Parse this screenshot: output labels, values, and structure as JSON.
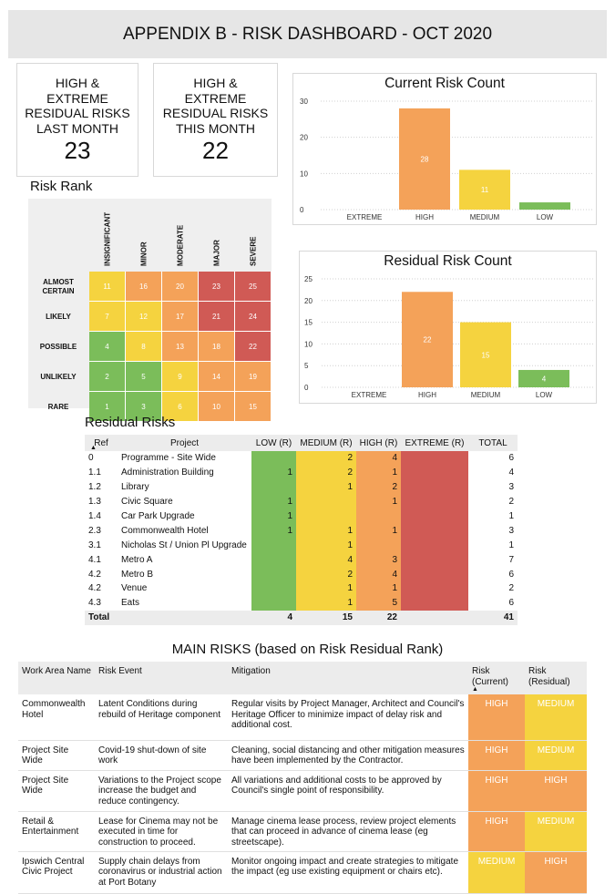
{
  "title": "APPENDIX B - RISK DASHBOARD - OCT 2020",
  "kpis": [
    {
      "label_lines": [
        "HIGH &",
        "EXTREME",
        "RESIDUAL RISKS",
        "LAST MONTH"
      ],
      "value": "23"
    },
    {
      "label_lines": [
        "HIGH &",
        "EXTREME",
        "RESIDUAL RISKS",
        "THIS MONTH"
      ],
      "value": "22"
    }
  ],
  "chart_data": [
    {
      "type": "bar",
      "title": "Current Risk Count",
      "categories": [
        "EXTREME",
        "HIGH",
        "MEDIUM",
        "LOW"
      ],
      "values": [
        0,
        28,
        11,
        2
      ],
      "labels": [
        "",
        "28",
        "11",
        ""
      ],
      "yticks": [
        0,
        10,
        20,
        30
      ],
      "ylim": [
        0,
        30
      ],
      "colors": [
        "#d05a55",
        "#f4a259",
        "#f5d33f",
        "#7bbd5a"
      ]
    },
    {
      "type": "bar",
      "title": "Residual Risk Count",
      "categories": [
        "EXTREME",
        "HIGH",
        "MEDIUM",
        "LOW"
      ],
      "values": [
        0,
        22,
        15,
        4
      ],
      "labels": [
        "",
        "22",
        "15",
        "4"
      ],
      "yticks": [
        0,
        5,
        10,
        15,
        20,
        25
      ],
      "ylim": [
        0,
        25
      ],
      "colors": [
        "#d05a55",
        "#f4a259",
        "#f5d33f",
        "#7bbd5a"
      ]
    }
  ],
  "risk_rank": {
    "title": "Risk Rank",
    "columns": [
      "INSIGNIFICANT",
      "MINOR",
      "MODERATE",
      "MAJOR",
      "SEVERE"
    ],
    "rows": [
      {
        "label_lines": [
          "ALMOST",
          "CERTAIN"
        ],
        "values": [
          "11",
          "16",
          "20",
          "23",
          "25"
        ],
        "colors": [
          "#f5d33f",
          "#f4a259",
          "#f4a259",
          "#d05a55",
          "#d05a55"
        ]
      },
      {
        "label_lines": [
          "LIKELY"
        ],
        "values": [
          "7",
          "12",
          "17",
          "21",
          "24"
        ],
        "colors": [
          "#f5d33f",
          "#f5d33f",
          "#f4a259",
          "#d05a55",
          "#d05a55"
        ]
      },
      {
        "label_lines": [
          "POSSIBLE"
        ],
        "values": [
          "4",
          "8",
          "13",
          "18",
          "22"
        ],
        "colors": [
          "#7bbd5a",
          "#f5d33f",
          "#f4a259",
          "#f4a259",
          "#d05a55"
        ]
      },
      {
        "label_lines": [
          "UNLIKELY"
        ],
        "values": [
          "2",
          "5",
          "9",
          "14",
          "19"
        ],
        "colors": [
          "#7bbd5a",
          "#7bbd5a",
          "#f5d33f",
          "#f4a259",
          "#f4a259"
        ]
      },
      {
        "label_lines": [
          "RARE"
        ],
        "values": [
          "1",
          "3",
          "6",
          "10",
          "15"
        ],
        "colors": [
          "#7bbd5a",
          "#7bbd5a",
          "#f5d33f",
          "#f4a259",
          "#f4a259"
        ]
      }
    ]
  },
  "residual_risks": {
    "title": "Residual Risks",
    "headers": [
      "Ref",
      "Project",
      "LOW (R)",
      "MEDIUM (R)",
      "HIGH (R)",
      "EXTREME (R)",
      "TOTAL"
    ],
    "sort_icon": "sort-up-icon",
    "rows": [
      [
        "0",
        "Programme - Site Wide",
        "",
        "2",
        "4",
        "",
        "6"
      ],
      [
        "1.1",
        "Administration Building",
        "1",
        "2",
        "1",
        "",
        "4"
      ],
      [
        "1.2",
        "Library",
        "",
        "1",
        "2",
        "",
        "3"
      ],
      [
        "1.3",
        "Civic Square",
        "1",
        "",
        "1",
        "",
        "2"
      ],
      [
        "1.4",
        "Car Park Upgrade",
        "1",
        "",
        "",
        "",
        "1"
      ],
      [
        "2.3",
        "Commonwealth Hotel",
        "1",
        "1",
        "1",
        "",
        "3"
      ],
      [
        "3.1",
        "Nicholas St / Union Pl Upgrade",
        "",
        "1",
        "",
        "",
        "1"
      ],
      [
        "4.1",
        "Metro A",
        "",
        "4",
        "3",
        "",
        "7"
      ],
      [
        "4.2",
        "Metro B",
        "",
        "2",
        "4",
        "",
        "6"
      ],
      [
        "4.2",
        "Venue",
        "",
        "1",
        "1",
        "",
        "2"
      ],
      [
        "4.3",
        "Eats",
        "",
        "1",
        "5",
        "",
        "6"
      ]
    ],
    "total": [
      "Total",
      "",
      "4",
      "15",
      "22",
      "",
      "41"
    ]
  },
  "main_risks": {
    "title": "MAIN RISKS (based on Risk Residual Rank)",
    "headers": [
      "Work Area Name",
      "Risk Event",
      "Mitigation",
      "Risk (Current)",
      "Risk (Residual)"
    ],
    "rows": [
      {
        "area": "Commonwealth Hotel",
        "event": "Latent Conditions during rebuild of Heritage component",
        "mitigation": "Regular visits by Project Manager, Architect and Council's Heritage Officer to minimize impact of delay risk and additional cost.",
        "current": "HIGH",
        "residual": "MEDIUM"
      },
      {
        "area": "Project Site Wide",
        "event": "Covid-19 shut-down of site work",
        "mitigation": "Cleaning, social distancing and other mitigation measures have been implemented by the Contractor.",
        "current": "HIGH",
        "residual": "MEDIUM"
      },
      {
        "area": "Project Site Wide",
        "event": "Variations to the Project scope increase the budget and reduce contingency.",
        "mitigation": "All variations and additional costs to be approved by Council's single point of responsibility.",
        "current": "HIGH",
        "residual": "HIGH"
      },
      {
        "area": "Retail & Entertainment",
        "event": "Lease for Cinema may not be executed in time for construction to proceed.",
        "mitigation": "Manage cinema lease process, review project elements that can proceed in advance of cinema lease (eg streetscape).",
        "current": "HIGH",
        "residual": "MEDIUM"
      },
      {
        "area": "Ipswich Central Civic Project",
        "event": "Supply chain delays from coronavirus or industrial action at Port Botany",
        "mitigation": "Monitor ongoing impact and create strategies to mitigate the impact (eg use existing equipment or chairs etc).",
        "current": "MEDIUM",
        "residual": "HIGH"
      }
    ]
  },
  "colors": {
    "low": "#7bbd5a",
    "medium": "#f5d33f",
    "high": "#f4a259",
    "extreme": "#d05a55"
  }
}
